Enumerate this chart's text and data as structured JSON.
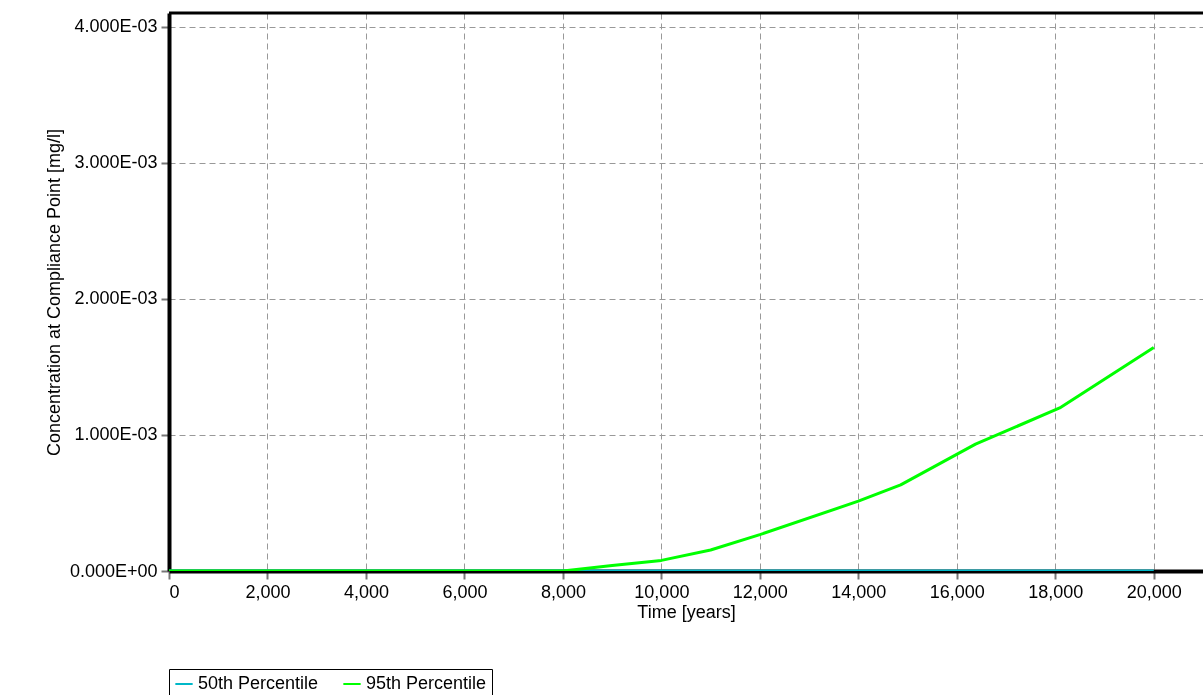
{
  "chart_data": {
    "type": "line",
    "xlabel": "Time [years]",
    "ylabel": "Concentration at Compliance Point [mg/l]",
    "xlim": [
      0,
      21000
    ],
    "ylim": [
      0,
      0.0041
    ],
    "xticks": [
      {
        "value": 0,
        "label": "0"
      },
      {
        "value": 2000,
        "label": "2,000"
      },
      {
        "value": 4000,
        "label": "4,000"
      },
      {
        "value": 6000,
        "label": "6,000"
      },
      {
        "value": 8000,
        "label": "8,000"
      },
      {
        "value": 10000,
        "label": "10,000"
      },
      {
        "value": 12000,
        "label": "12,000"
      },
      {
        "value": 14000,
        "label": "14,000"
      },
      {
        "value": 16000,
        "label": "16,000"
      },
      {
        "value": 18000,
        "label": "18,000"
      },
      {
        "value": 20000,
        "label": "20,000"
      }
    ],
    "yticks": [
      {
        "value": 0,
        "label": "0.000E+00"
      },
      {
        "value": 0.001,
        "label": "1.000E-03"
      },
      {
        "value": 0.002,
        "label": "2.000E-03"
      },
      {
        "value": 0.003,
        "label": "3.000E-03"
      },
      {
        "value": 0.004,
        "label": "4.000E-03"
      }
    ],
    "grid": true,
    "legend": "bottom",
    "line_style": "solid",
    "series": [
      {
        "name": "50th Percentile",
        "color": "#00b8c8",
        "x": [
          0,
          4000,
          8000,
          12000,
          16000,
          20000
        ],
        "values": [
          0,
          0,
          0,
          0,
          0,
          0
        ]
      },
      {
        "name": "95th Percentile",
        "color": "#00ff00",
        "x": [
          0,
          2000,
          4000,
          6000,
          8000,
          9000,
          10000,
          11000,
          12000,
          14000,
          14860,
          16380,
          18090,
          20000
        ],
        "values": [
          0,
          0,
          0,
          0,
          0,
          4e-05,
          7.8e-05,
          0.000154,
          0.000267,
          0.000513,
          0.000633,
          0.000932,
          0.001198,
          0.001643
        ]
      }
    ]
  }
}
